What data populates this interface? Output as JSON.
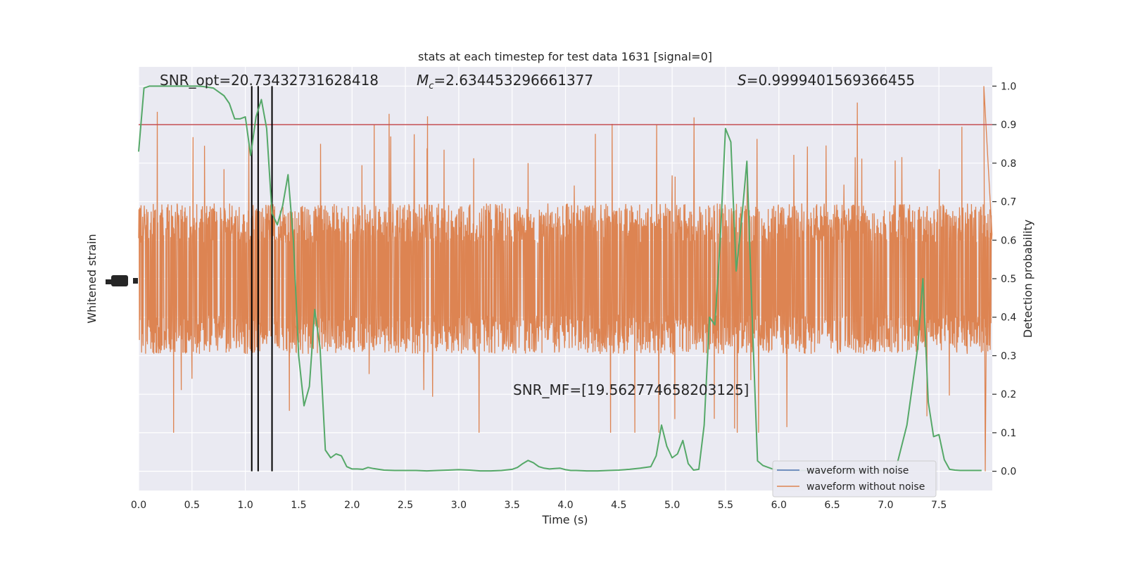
{
  "chart_data": {
    "type": "line",
    "title": "stats at each timestep for test data 1631 [signal=0]",
    "xlabel": "Time (s)",
    "ylabel_left": "Whitened strain",
    "ylabel_right": "Detection probability",
    "xlim": [
      0,
      8
    ],
    "ylim_right": [
      -0.05,
      1.05
    ],
    "grid": true,
    "background": "#eaeaf2",
    "x_ticks": [
      0.0,
      0.5,
      1.0,
      1.5,
      2.0,
      2.5,
      3.0,
      3.5,
      4.0,
      4.5,
      5.0,
      5.5,
      6.0,
      6.5,
      7.0,
      7.5
    ],
    "x_tick_labels": [
      "0.0",
      "0.5",
      "1.0",
      "1.5",
      "2.0",
      "2.5",
      "3.0",
      "3.5",
      "4.0",
      "4.5",
      "5.0",
      "5.5",
      "6.0",
      "6.5",
      "7.0",
      "7.5"
    ],
    "y_right_ticks": [
      0.0,
      0.1,
      0.2,
      0.3,
      0.4,
      0.5,
      0.6,
      0.7,
      0.8,
      0.9,
      1.0
    ],
    "y_right_tick_labels": [
      "0.0",
      "0.1",
      "0.2",
      "0.3",
      "0.4",
      "0.5",
      "0.6",
      "0.7",
      "0.8",
      "0.9",
      "1.0"
    ],
    "annotations": {
      "snr_opt": "SNR_opt=20.73432731628418",
      "mc_symbol": "M",
      "mc_sub": "c",
      "mc_value": "=2.634453296661377",
      "s_symbol": "S",
      "s_value": "=0.9999401569366455",
      "snr_mf": "SNR_MF=[19.562774658203125]"
    },
    "threshold": {
      "value": 0.9,
      "color": "#c44e52"
    },
    "vertical_lines": [
      1.06,
      1.12,
      1.25
    ],
    "legend": {
      "placement": "lower-right",
      "entries": [
        {
          "label": "waveform with noise",
          "color": "#4c72b0"
        },
        {
          "label": "waveform without noise",
          "color": "#dd8452"
        }
      ]
    },
    "colors": {
      "noise_waveform": "#dd8452",
      "probability": "#55a868",
      "vline": "#000000"
    },
    "noise_band": {
      "dense_half_width": 0.17,
      "spike_range": [
        0.1,
        0.97
      ]
    },
    "series": [
      {
        "name": "Detection probability",
        "axis": "right",
        "x": [
          0.0,
          0.05,
          0.1,
          0.15,
          0.2,
          0.25,
          0.3,
          0.35,
          0.4,
          0.45,
          0.5,
          0.55,
          0.6,
          0.65,
          0.7,
          0.75,
          0.8,
          0.85,
          0.9,
          0.95,
          1.0,
          1.05,
          1.1,
          1.15,
          1.2,
          1.25,
          1.3,
          1.35,
          1.4,
          1.45,
          1.5,
          1.55,
          1.6,
          1.65,
          1.7,
          1.75,
          1.8,
          1.85,
          1.9,
          1.95,
          2.0,
          2.05,
          2.1,
          2.15,
          2.2,
          2.3,
          2.4,
          2.5,
          2.6,
          2.7,
          2.8,
          2.9,
          3.0,
          3.1,
          3.2,
          3.3,
          3.4,
          3.5,
          3.55,
          3.6,
          3.65,
          3.7,
          3.75,
          3.8,
          3.85,
          3.9,
          3.95,
          4.0,
          4.05,
          4.1,
          4.2,
          4.3,
          4.4,
          4.5,
          4.6,
          4.7,
          4.8,
          4.85,
          4.9,
          4.95,
          5.0,
          5.05,
          5.1,
          5.15,
          5.2,
          5.25,
          5.3,
          5.35,
          5.4,
          5.45,
          5.5,
          5.55,
          5.6,
          5.65,
          5.7,
          5.75,
          5.8,
          5.85,
          5.9,
          5.95,
          6.0,
          6.05,
          6.1,
          6.2,
          6.3,
          6.4,
          6.5,
          6.6,
          6.7,
          6.8,
          6.9,
          7.0,
          7.1,
          7.2,
          7.3,
          7.35,
          7.4,
          7.45,
          7.5,
          7.55,
          7.6,
          7.65,
          7.7,
          7.75,
          7.8,
          7.85,
          7.9
        ],
        "y": [
          0.83,
          0.995,
          1.0,
          1.0,
          1.0,
          1.0,
          1.0,
          1.0,
          1.0,
          1.0,
          1.0,
          1.0,
          0.999,
          0.997,
          0.995,
          0.985,
          0.975,
          0.955,
          0.915,
          0.915,
          0.92,
          0.82,
          0.92,
          0.965,
          0.89,
          0.67,
          0.64,
          0.69,
          0.77,
          0.6,
          0.3,
          0.17,
          0.22,
          0.42,
          0.32,
          0.055,
          0.035,
          0.045,
          0.04,
          0.012,
          0.006,
          0.006,
          0.005,
          0.01,
          0.007,
          0.003,
          0.002,
          0.002,
          0.002,
          0.001,
          0.002,
          0.003,
          0.004,
          0.003,
          0.001,
          0.001,
          0.002,
          0.005,
          0.01,
          0.02,
          0.028,
          0.022,
          0.012,
          0.008,
          0.006,
          0.007,
          0.008,
          0.004,
          0.002,
          0.002,
          0.001,
          0.001,
          0.002,
          0.003,
          0.005,
          0.008,
          0.012,
          0.04,
          0.12,
          0.065,
          0.035,
          0.045,
          0.08,
          0.02,
          0.003,
          0.005,
          0.12,
          0.4,
          0.38,
          0.6,
          0.89,
          0.855,
          0.52,
          0.65,
          0.805,
          0.4,
          0.027,
          0.015,
          0.01,
          0.005,
          0.004,
          0.003,
          0.002,
          0.002,
          0.002,
          0.002,
          0.002,
          0.002,
          0.002,
          0.002,
          0.002,
          0.002,
          0.01,
          0.12,
          0.32,
          0.5,
          0.18,
          0.09,
          0.095,
          0.03,
          0.005,
          0.003,
          0.002,
          0.002,
          0.002,
          0.002,
          0.002
        ]
      }
    ]
  }
}
